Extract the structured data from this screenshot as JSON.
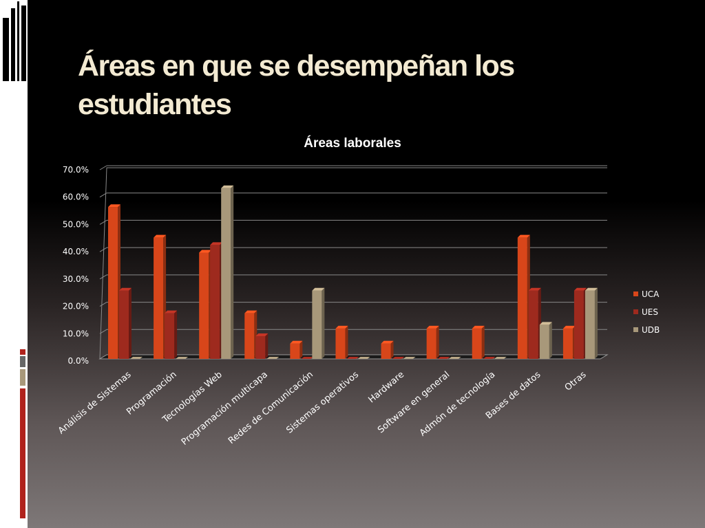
{
  "slide": {
    "title_line1": "Áreas en que se desempeñan los",
    "title_line2": "estudiantes"
  },
  "colors": {
    "background": "#000000",
    "title_text": "#f3ead2",
    "accent_red": "#b0221c",
    "accent_gray": "#666666",
    "accent_tan": "#a8987a"
  },
  "chart_data": {
    "type": "bar",
    "title": "Áreas laborales",
    "xlabel": "",
    "ylabel": "",
    "ylim": [
      0,
      70
    ],
    "ytick_labels": [
      "0.0%",
      "10.0%",
      "20.0%",
      "30.0%",
      "40.0%",
      "50.0%",
      "60.0%",
      "70.0%"
    ],
    "grid": true,
    "legend_position": "right",
    "categories": [
      "Análisis de Sistemas",
      "Programación",
      "Tecnologías Web",
      "Programación multicapa",
      "Redes de Comunicación",
      "Sistemas operativos",
      "Hardware",
      "Software en general",
      "Admón de tecnología",
      "Bases de datos",
      "Otras"
    ],
    "series": [
      {
        "name": "UCA",
        "color": "#d8461a",
        "values": [
          55.6,
          44.4,
          38.9,
          16.7,
          5.6,
          11.1,
          5.6,
          11.1,
          11.1,
          44.4,
          11.1
        ]
      },
      {
        "name": "UES",
        "color": "#9e2a1e",
        "values": [
          25.0,
          16.7,
          41.7,
          8.3,
          0.0,
          0.0,
          0.0,
          0.0,
          0.0,
          25.0,
          25.0
        ]
      },
      {
        "name": "UDB",
        "color": "#a8987a",
        "values": [
          0.0,
          0.0,
          62.5,
          0.0,
          25.0,
          0.0,
          0.0,
          0.0,
          0.0,
          12.5,
          25.0
        ]
      }
    ]
  }
}
